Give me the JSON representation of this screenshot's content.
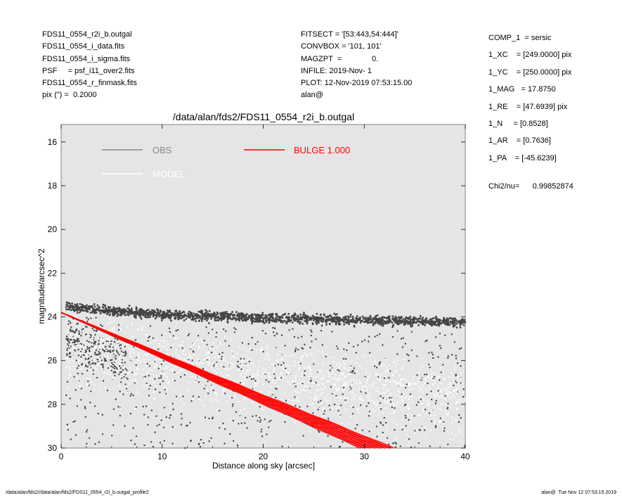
{
  "header": {
    "left": [
      "FDS11_0554_r2i_b.outgal",
      "FDS11_0554_i_data.fits",
      "FDS11_0554_i_sigma.fits",
      "PSF     = psf_i11_over2.fits",
      "FDS11_0554_r_finmask.fits",
      "pix (\") =  0.2000"
    ],
    "middle": [
      "FITSECT = '[53:443,54:444]'",
      "CONVBOX = '101, 101'",
      "MAGZPT  =              0.",
      "INFILE: 2019-Nov- 1",
      "PLOT: 12-Nov-2019 07:53:15.00",
      "alan@"
    ]
  },
  "params": [
    "COMP_1  = sersic",
    "1_XC    = [249.0000] pix",
    "1_YC    = [250.0000] pix",
    "1_MAG   = 17.8750",
    "1_RE    = [47.6939] pix",
    "1_N     = [0.8528]",
    "1_AR    = [0.7636]",
    "1_PA    = [-45.6239]"
  ],
  "chi2": "Chi2/nu=      0.99852874",
  "footer": {
    "left": "/data/alan/fds2//data/alan/fds2/FDS11_0554_r2i_b.outgal_profile2",
    "right": "alan@  Tue Nov 12 07:53:15 2019"
  },
  "chart_data": {
    "type": "scatter",
    "title": "/data/alan/fds2/FDS11_0554_r2i_b.outgal",
    "xlabel": "Distance along sky [arcsec]",
    "ylabel": "magnitude/arcsec^2",
    "xlim": [
      0,
      40
    ],
    "ylim": [
      30,
      15.2
    ],
    "y_inverted": true,
    "x_ticks": [
      0,
      10,
      20,
      30,
      40
    ],
    "y_ticks": [
      16,
      18,
      20,
      22,
      24,
      26,
      28,
      30
    ],
    "background_color": "#e5e5e5",
    "grid": false,
    "legend": [
      {
        "name": "OBS",
        "color": "#888888"
      },
      {
        "name": "MODEL",
        "color": "#ffffff"
      },
      {
        "name": "BULGE  1.000",
        "color": "#ff0000"
      }
    ],
    "series": [
      {
        "name": "OBS",
        "color": "#444444",
        "upper_band": {
          "x": [
            0.5,
            10,
            20,
            30,
            40
          ],
          "y": [
            23.55,
            23.9,
            24.05,
            24.15,
            24.25
          ],
          "spread": 0.35
        },
        "scatter_range": {
          "x": [
            0.5,
            40
          ],
          "y": [
            23.3,
            30
          ]
        }
      },
      {
        "name": "MODEL",
        "color": "#ffffff",
        "scatter_range": {
          "x": [
            0.5,
            40
          ],
          "y": [
            23.5,
            30
          ]
        }
      },
      {
        "name": "BULGE  1.000",
        "color": "#ff0000",
        "profile": {
          "x0": 0,
          "y0": 23.8,
          "x1": 33,
          "y1_upper": 30.0,
          "y1_lower": 30.0,
          "spread_at_end_x": [
            29.5,
            33
          ]
        }
      }
    ]
  }
}
